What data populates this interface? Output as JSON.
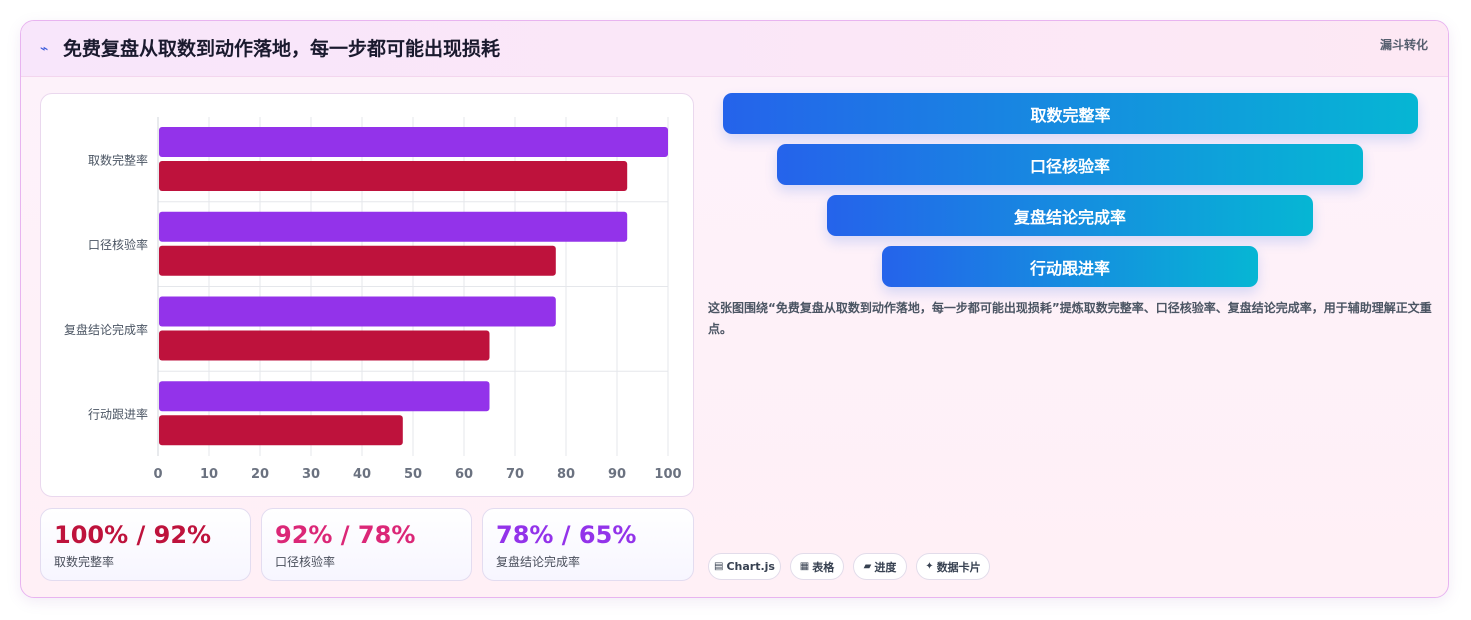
{
  "header": {
    "icon": "trend-icon",
    "icon_glyph": "⌁",
    "title": "免费复盘从取数到动作落地，每一步都可能出现损耗",
    "tag": "漏斗转化"
  },
  "chart_data": {
    "type": "bar",
    "orientation": "horizontal",
    "categories": [
      "取数完整率",
      "口径核验率",
      "复盘结论完成率",
      "行动跟进率"
    ],
    "series": [
      {
        "values": [
          100,
          92,
          78,
          65
        ],
        "color": "#9333ea"
      },
      {
        "values": [
          92,
          78,
          65,
          48
        ],
        "color": "#be123c"
      }
    ],
    "xlim": [
      0,
      100
    ],
    "xticks": [
      0,
      10,
      20,
      30,
      40,
      50,
      60,
      70,
      80,
      90,
      100
    ],
    "grid": true
  },
  "stats": [
    {
      "value": "100% / 92%",
      "label": "取数完整率",
      "color": "#be123c"
    },
    {
      "value": "92% / 78%",
      "label": "口径核验率",
      "color": "#db2777"
    },
    {
      "value": "78% / 65%",
      "label": "复盘结论完成率",
      "color": "#9333ea"
    }
  ],
  "funnel": [
    "取数完整率",
    "口径核验率",
    "复盘结论完成率",
    "行动跟进率"
  ],
  "description": "这张图围绕“免费复盘从取数到动作落地，每一步都可能出现损耗”提炼取数完整率、口径核验率、复盘结论完成率，用于辅助理解正文重点。",
  "chips": [
    {
      "icon": "▤",
      "label": "Chart.js"
    },
    {
      "icon": "▦",
      "label": "表格"
    },
    {
      "icon": "▰",
      "label": "进度"
    },
    {
      "icon": "✦",
      "label": "数据卡片"
    }
  ]
}
